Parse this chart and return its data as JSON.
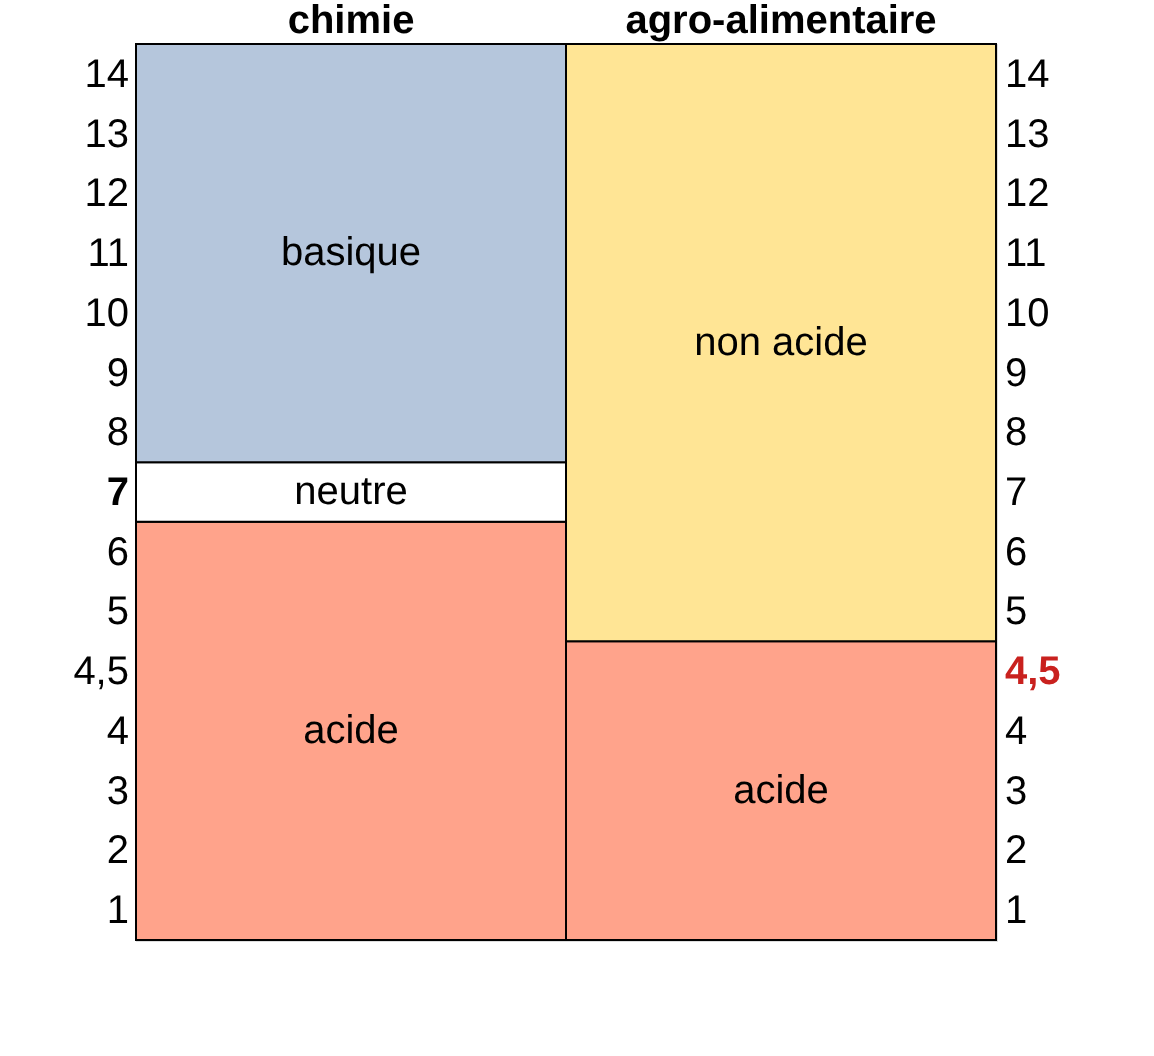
{
  "chart_data": {
    "type": "bar",
    "stacked": true,
    "categories": [
      "chimie",
      "agro-alimentaire"
    ],
    "series": [
      {
        "name": "acide",
        "color": "#ffa38b",
        "values": [
          7,
          5
        ]
      },
      {
        "name": "neutre",
        "color": "#ffffff",
        "values": [
          1,
          null
        ]
      },
      {
        "name": "basique",
        "color": "#b5c6dc",
        "values": [
          7,
          null
        ]
      },
      {
        "name": "non acide",
        "color": "#ffe595",
        "values": [
          null,
          10
        ]
      }
    ],
    "ylim": [
      0,
      15
    ],
    "yticks": [
      {
        "value": 0.5,
        "label": "1"
      },
      {
        "value": 1.5,
        "label": "2"
      },
      {
        "value": 2.5,
        "label": "3"
      },
      {
        "value": 3.5,
        "label": "4"
      },
      {
        "value": 4.5,
        "label": "4,5"
      },
      {
        "value": 5.5,
        "label": "5"
      },
      {
        "value": 6.5,
        "label": "6"
      },
      {
        "value": 7.5,
        "label": "7"
      },
      {
        "value": 8.5,
        "label": "8"
      },
      {
        "value": 9.5,
        "label": "9"
      },
      {
        "value": 10.5,
        "label": "10"
      },
      {
        "value": 11.5,
        "label": "11"
      },
      {
        "value": 12.5,
        "label": "12"
      },
      {
        "value": 13.5,
        "label": "13"
      },
      {
        "value": 14.5,
        "label": "14"
      }
    ],
    "y2lim": [
      0,
      15
    ],
    "y2ticks": [
      {
        "value": 0.5,
        "label": "1"
      },
      {
        "value": 1.5,
        "label": "2"
      },
      {
        "value": 2.5,
        "label": "3"
      },
      {
        "value": 3.5,
        "label": "4"
      },
      {
        "value": 4.5,
        "label": "4,5"
      },
      {
        "value": 5.5,
        "label": "5"
      },
      {
        "value": 6.5,
        "label": "6"
      },
      {
        "value": 7.5,
        "label": "7"
      },
      {
        "value": 8.5,
        "label": "8"
      },
      {
        "value": 9.5,
        "label": "9"
      },
      {
        "value": 10.5,
        "label": "10"
      },
      {
        "value": 11.5,
        "label": "11"
      },
      {
        "value": 12.5,
        "label": "12"
      },
      {
        "value": 13.5,
        "label": "13"
      },
      {
        "value": 14.5,
        "label": "14"
      }
    ],
    "legend": false
  }
}
